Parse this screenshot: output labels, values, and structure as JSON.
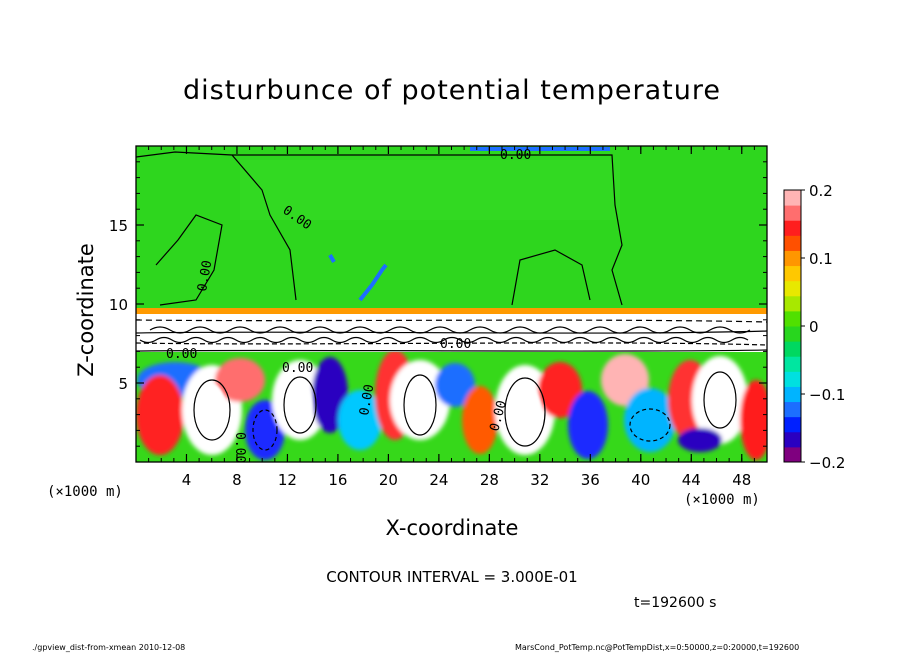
{
  "chart_data": {
    "type": "heatmap",
    "title": "disturbunce of potential temperature",
    "xlabel": "X-coordinate",
    "ylabel": "Z-coordinate",
    "x_unit": "(×1000 m)",
    "y_unit": "(×1000 m)",
    "xlim": [
      0,
      50
    ],
    "ylim": [
      0,
      20
    ],
    "x_ticks": [
      4,
      8,
      12,
      16,
      20,
      24,
      28,
      32,
      36,
      40,
      44,
      48
    ],
    "y_ticks": [
      5,
      10,
      15
    ],
    "colorbar": {
      "range": [
        -0.2,
        0.2
      ],
      "ticks": [
        "0.2",
        "0.1",
        "0",
        "−0.1",
        "−0.2"
      ],
      "tick_values": [
        0.2,
        0.1,
        0,
        -0.1,
        -0.2
      ],
      "colors": [
        "#7f007f",
        "#2a00c0",
        "#0020ff",
        "#1c6eff",
        "#00b4ff",
        "#00e0e0",
        "#00e6a0",
        "#00d860",
        "#28d61e",
        "#50e000",
        "#a8e800",
        "#e8e800",
        "#ffc800",
        "#ff9600",
        "#ff5000",
        "#ff1e1e",
        "#ff6e6e",
        "#ffb4b4"
      ]
    },
    "contour_labels": [
      "0.00",
      "0.00",
      "0.00",
      "0.00",
      "0.00",
      "0.00",
      "0.00",
      "0.00",
      "0.00"
    ],
    "contour_interval": "CONTOUR INTERVAL = 3.000E-01",
    "time": "t=192600 s"
  },
  "footer": {
    "left": "./gpview_dist-from-xmean   2010-12-08",
    "right": "MarsCond_PotTemp.nc@PotTempDist,x=0:50000,z=0:20000,t=192600"
  }
}
